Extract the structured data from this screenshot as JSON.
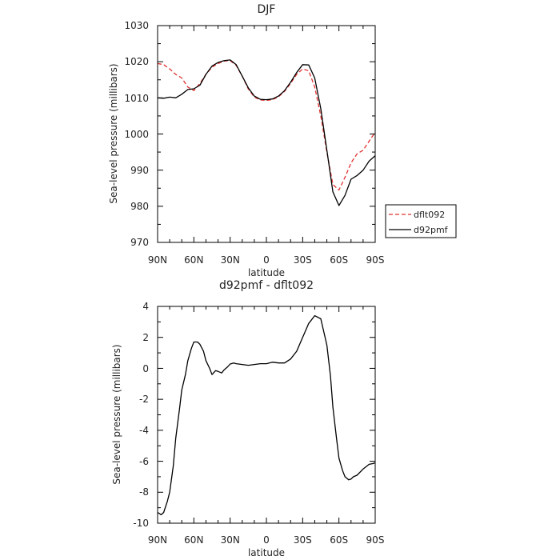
{
  "chart_data": [
    {
      "type": "line",
      "title": "DJF",
      "xlabel": "latitude",
      "ylabel": "Sea-level pressure (millibars)",
      "x_ticks": [
        "90N",
        "60N",
        "30N",
        "0",
        "30S",
        "60S",
        "90S"
      ],
      "y_ticks": [
        "970",
        "980",
        "990",
        "1000",
        "1010",
        "1020",
        "1030"
      ],
      "xlim": [
        90,
        -90
      ],
      "ylim": [
        970,
        1030
      ],
      "legend_position": "right",
      "series": [
        {
          "name": "dflt092",
          "color": "#e03030",
          "dash": true,
          "x": [
            90,
            85,
            80,
            75,
            70,
            65,
            60,
            55,
            50,
            45,
            40,
            35,
            30,
            25,
            20,
            15,
            10,
            5,
            0,
            -5,
            -10,
            -15,
            -20,
            -25,
            -30,
            -35,
            -40,
            -45,
            -50,
            -55,
            -60,
            -65,
            -70,
            -75,
            -80,
            -85,
            -90
          ],
          "y": [
            1019.5,
            1019.2,
            1018,
            1016.5,
            1015.5,
            1013,
            1012,
            1014,
            1016.5,
            1018.5,
            1019.5,
            1020.2,
            1020.3,
            1019,
            1016,
            1012.5,
            1010.2,
            1009.4,
            1009.3,
            1009.5,
            1010.3,
            1011.8,
            1014,
            1016.5,
            1018,
            1017.5,
            1013,
            1005,
            995,
            986,
            984.5,
            988,
            992,
            994.5,
            995.5,
            998,
            1000.5
          ]
        },
        {
          "name": "d92pmf",
          "color": "#000000",
          "dash": false,
          "x": [
            90,
            85,
            80,
            75,
            70,
            65,
            60,
            55,
            50,
            45,
            40,
            35,
            30,
            25,
            20,
            15,
            10,
            5,
            0,
            -5,
            -10,
            -15,
            -20,
            -25,
            -30,
            -35,
            -40,
            -45,
            -50,
            -55,
            -60,
            -65,
            -70,
            -75,
            -80,
            -85,
            -90
          ],
          "y": [
            1010,
            1009.9,
            1010.2,
            1010,
            1011,
            1012.3,
            1012.5,
            1013.5,
            1016.5,
            1018.8,
            1019.8,
            1020.3,
            1020.5,
            1019.2,
            1016,
            1012.8,
            1010.5,
            1009.6,
            1009.5,
            1009.7,
            1010.5,
            1012,
            1014.3,
            1017,
            1019.2,
            1019.1,
            1015.5,
            1007,
            995.5,
            984,
            980.2,
            983,
            987.5,
            988.5,
            990,
            992.5,
            994
          ]
        }
      ]
    },
    {
      "type": "line",
      "title": "d92pmf - dflt092",
      "xlabel": "latitude",
      "ylabel": "Sea-level pressure (millibars)",
      "x_ticks": [
        "90N",
        "60N",
        "30N",
        "0",
        "30S",
        "60S",
        "90S"
      ],
      "y_ticks": [
        "-10",
        "-8",
        "-6",
        "-4",
        "-2",
        "0",
        "2",
        "4"
      ],
      "xlim": [
        90,
        -90
      ],
      "ylim": [
        -10,
        4
      ],
      "series": [
        {
          "color": "#000000",
          "x": [
            90,
            87,
            85,
            82,
            80,
            77,
            75,
            72,
            70,
            67,
            65,
            62,
            60,
            57,
            55,
            52,
            50,
            47,
            45,
            42,
            40,
            37,
            35,
            32,
            30,
            27,
            25,
            20,
            15,
            10,
            5,
            0,
            -5,
            -10,
            -15,
            -20,
            -25,
            -30,
            -35,
            -40,
            -45,
            -50,
            -53,
            -55,
            -58,
            -60,
            -63,
            -65,
            -68,
            -70,
            -72,
            -75,
            -80,
            -85,
            -88,
            -90
          ],
          "y": [
            -9.3,
            -9.45,
            -9.3,
            -8.6,
            -8,
            -6.3,
            -4.5,
            -2.7,
            -1.4,
            -0.4,
            0.5,
            1.3,
            1.7,
            1.7,
            1.55,
            1.1,
            0.5,
            0,
            -0.4,
            -0.15,
            -0.2,
            -0.3,
            -0.1,
            0.1,
            0.28,
            0.35,
            0.3,
            0.25,
            0.2,
            0.25,
            0.3,
            0.3,
            0.4,
            0.35,
            0.35,
            0.6,
            1.1,
            2.0,
            2.9,
            3.4,
            3.2,
            1.5,
            -0.5,
            -2.5,
            -4.5,
            -5.8,
            -6.6,
            -7,
            -7.2,
            -7.15,
            -7.0,
            -6.9,
            -6.5,
            -6.2,
            -6.15,
            -6.1
          ]
        }
      ]
    }
  ]
}
